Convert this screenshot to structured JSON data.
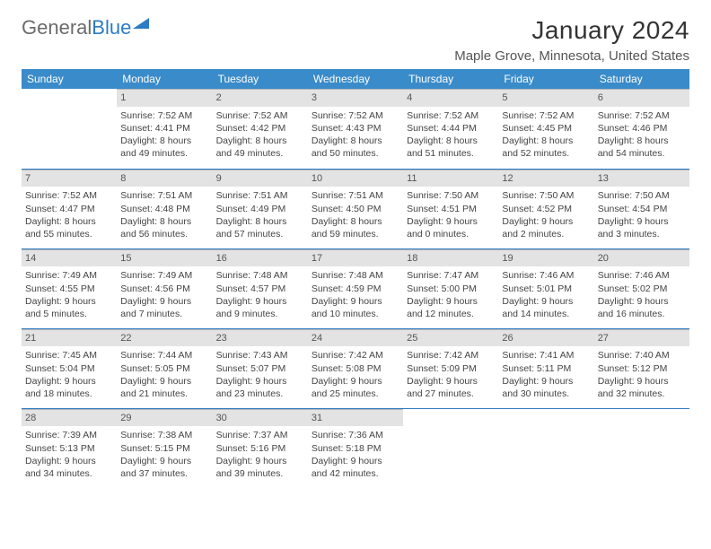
{
  "logo": {
    "text1": "General",
    "text2": "Blue"
  },
  "title": "January 2024",
  "location": "Maple Grove, Minnesota, United States",
  "colors": {
    "header_bg": "#3a8bc9",
    "day_bg": "#e3e3e3",
    "day_border": "#b5b5b5",
    "sep": "#2c7bc4"
  },
  "weekdays": [
    "Sunday",
    "Monday",
    "Tuesday",
    "Wednesday",
    "Thursday",
    "Friday",
    "Saturday"
  ],
  "weeks": [
    [
      null,
      {
        "n": "1",
        "sr": "7:52 AM",
        "ss": "4:41 PM",
        "dl": "8 hours and 49 minutes."
      },
      {
        "n": "2",
        "sr": "7:52 AM",
        "ss": "4:42 PM",
        "dl": "8 hours and 49 minutes."
      },
      {
        "n": "3",
        "sr": "7:52 AM",
        "ss": "4:43 PM",
        "dl": "8 hours and 50 minutes."
      },
      {
        "n": "4",
        "sr": "7:52 AM",
        "ss": "4:44 PM",
        "dl": "8 hours and 51 minutes."
      },
      {
        "n": "5",
        "sr": "7:52 AM",
        "ss": "4:45 PM",
        "dl": "8 hours and 52 minutes."
      },
      {
        "n": "6",
        "sr": "7:52 AM",
        "ss": "4:46 PM",
        "dl": "8 hours and 54 minutes."
      }
    ],
    [
      {
        "n": "7",
        "sr": "7:52 AM",
        "ss": "4:47 PM",
        "dl": "8 hours and 55 minutes."
      },
      {
        "n": "8",
        "sr": "7:51 AM",
        "ss": "4:48 PM",
        "dl": "8 hours and 56 minutes."
      },
      {
        "n": "9",
        "sr": "7:51 AM",
        "ss": "4:49 PM",
        "dl": "8 hours and 57 minutes."
      },
      {
        "n": "10",
        "sr": "7:51 AM",
        "ss": "4:50 PM",
        "dl": "8 hours and 59 minutes."
      },
      {
        "n": "11",
        "sr": "7:50 AM",
        "ss": "4:51 PM",
        "dl": "9 hours and 0 minutes."
      },
      {
        "n": "12",
        "sr": "7:50 AM",
        "ss": "4:52 PM",
        "dl": "9 hours and 2 minutes."
      },
      {
        "n": "13",
        "sr": "7:50 AM",
        "ss": "4:54 PM",
        "dl": "9 hours and 3 minutes."
      }
    ],
    [
      {
        "n": "14",
        "sr": "7:49 AM",
        "ss": "4:55 PM",
        "dl": "9 hours and 5 minutes."
      },
      {
        "n": "15",
        "sr": "7:49 AM",
        "ss": "4:56 PM",
        "dl": "9 hours and 7 minutes."
      },
      {
        "n": "16",
        "sr": "7:48 AM",
        "ss": "4:57 PM",
        "dl": "9 hours and 9 minutes."
      },
      {
        "n": "17",
        "sr": "7:48 AM",
        "ss": "4:59 PM",
        "dl": "9 hours and 10 minutes."
      },
      {
        "n": "18",
        "sr": "7:47 AM",
        "ss": "5:00 PM",
        "dl": "9 hours and 12 minutes."
      },
      {
        "n": "19",
        "sr": "7:46 AM",
        "ss": "5:01 PM",
        "dl": "9 hours and 14 minutes."
      },
      {
        "n": "20",
        "sr": "7:46 AM",
        "ss": "5:02 PM",
        "dl": "9 hours and 16 minutes."
      }
    ],
    [
      {
        "n": "21",
        "sr": "7:45 AM",
        "ss": "5:04 PM",
        "dl": "9 hours and 18 minutes."
      },
      {
        "n": "22",
        "sr": "7:44 AM",
        "ss": "5:05 PM",
        "dl": "9 hours and 21 minutes."
      },
      {
        "n": "23",
        "sr": "7:43 AM",
        "ss": "5:07 PM",
        "dl": "9 hours and 23 minutes."
      },
      {
        "n": "24",
        "sr": "7:42 AM",
        "ss": "5:08 PM",
        "dl": "9 hours and 25 minutes."
      },
      {
        "n": "25",
        "sr": "7:42 AM",
        "ss": "5:09 PM",
        "dl": "9 hours and 27 minutes."
      },
      {
        "n": "26",
        "sr": "7:41 AM",
        "ss": "5:11 PM",
        "dl": "9 hours and 30 minutes."
      },
      {
        "n": "27",
        "sr": "7:40 AM",
        "ss": "5:12 PM",
        "dl": "9 hours and 32 minutes."
      }
    ],
    [
      {
        "n": "28",
        "sr": "7:39 AM",
        "ss": "5:13 PM",
        "dl": "9 hours and 34 minutes."
      },
      {
        "n": "29",
        "sr": "7:38 AM",
        "ss": "5:15 PM",
        "dl": "9 hours and 37 minutes."
      },
      {
        "n": "30",
        "sr": "7:37 AM",
        "ss": "5:16 PM",
        "dl": "9 hours and 39 minutes."
      },
      {
        "n": "31",
        "sr": "7:36 AM",
        "ss": "5:18 PM",
        "dl": "9 hours and 42 minutes."
      },
      null,
      null,
      null
    ]
  ],
  "labels": {
    "sunrise": "Sunrise:",
    "sunset": "Sunset:",
    "daylight": "Daylight:"
  }
}
